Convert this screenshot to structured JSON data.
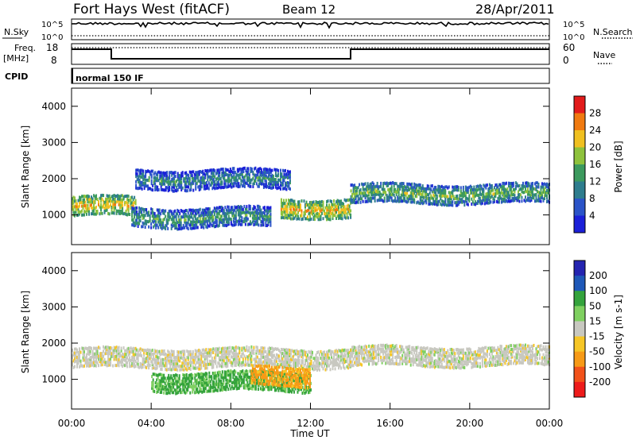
{
  "header": {
    "title": "Fort Hays West (fitACF)",
    "beam": "Beam 12",
    "date": "28/Apr/2011"
  },
  "noise_panel": {
    "left_label": "N.Sky",
    "right_label": "N.Search",
    "ticks_left": [
      "10^5",
      "10^0"
    ],
    "ticks_right": [
      "10^5",
      "10^0"
    ]
  },
  "freq_panel": {
    "left_label_1": "Freq.",
    "left_label_2": "[MHz]",
    "right_label": "Nave",
    "ticks_left": [
      "18",
      "8"
    ],
    "ticks_right": [
      "60",
      "0"
    ]
  },
  "cpid": {
    "label": "CPID",
    "mode": "normal 150 IF"
  },
  "colors": {
    "power_scale": [
      "#1b20d8",
      "#2b54c8",
      "#2e7d8e",
      "#3c9a5e",
      "#8ec23c",
      "#f0c020",
      "#f07a10",
      "#e21b1b"
    ],
    "velocity_scale": [
      "#ee1b1b",
      "#f2521a",
      "#f79a16",
      "#f6c626",
      "#c8c8c0",
      "#7fd060",
      "#34a33c",
      "#1e58b8",
      "#2424b0"
    ]
  },
  "chart_data": [
    {
      "type": "heatmap",
      "name": "power",
      "ylabel": "Slant Range [km]",
      "y_ticks": [
        "4000",
        "3000",
        "2000",
        "1000"
      ],
      "ylim": [
        180,
        4500
      ],
      "colorbar": {
        "label": "Power [dB]",
        "ticks": [
          "28",
          "24",
          "20",
          "16",
          "12",
          "8",
          "4"
        ],
        "range": [
          0,
          32
        ]
      },
      "regions": [
        {
          "start_ut": 0,
          "end_ut": 3.2,
          "range_km": 1250,
          "peak_db": 22
        },
        {
          "start_ut": 3.2,
          "end_ut": 11.0,
          "range_km": 2000,
          "peak_db": 12
        },
        {
          "start_ut": 3.0,
          "end_ut": 10.0,
          "range_km": 950,
          "peak_db": 14
        },
        {
          "start_ut": 10.5,
          "end_ut": 14.0,
          "range_km": 1200,
          "peak_db": 22
        },
        {
          "start_ut": 14.0,
          "end_ut": 24.0,
          "range_km": 1600,
          "peak_db": 16
        }
      ]
    },
    {
      "type": "heatmap",
      "name": "velocity",
      "ylabel": "Slant Range [km]",
      "xlabel": "Time UT",
      "x_ticks": [
        "00:00",
        "04:00",
        "08:00",
        "12:00",
        "16:00",
        "20:00",
        "00:00"
      ],
      "y_ticks": [
        "4000",
        "3000",
        "2000",
        "1000"
      ],
      "xlim_hours": [
        0,
        24
      ],
      "ylim": [
        180,
        4500
      ],
      "colorbar": {
        "label": "Velocity [m s-1]",
        "ticks": [
          "200",
          "100",
          "50",
          "15",
          "-15",
          "-50",
          "-100",
          "-200"
        ]
      },
      "regions": [
        {
          "start_ut": 0,
          "end_ut": 14.0,
          "range_km": 1600,
          "velocity_ms": 0
        },
        {
          "start_ut": 4.0,
          "end_ut": 12.0,
          "range_km": 950,
          "velocity_ms": 60
        },
        {
          "start_ut": 9.0,
          "end_ut": 12.0,
          "range_km": 1100,
          "velocity_ms": -60
        },
        {
          "start_ut": 14.0,
          "end_ut": 24.0,
          "range_km": 1650,
          "velocity_ms": 0
        }
      ]
    }
  ]
}
